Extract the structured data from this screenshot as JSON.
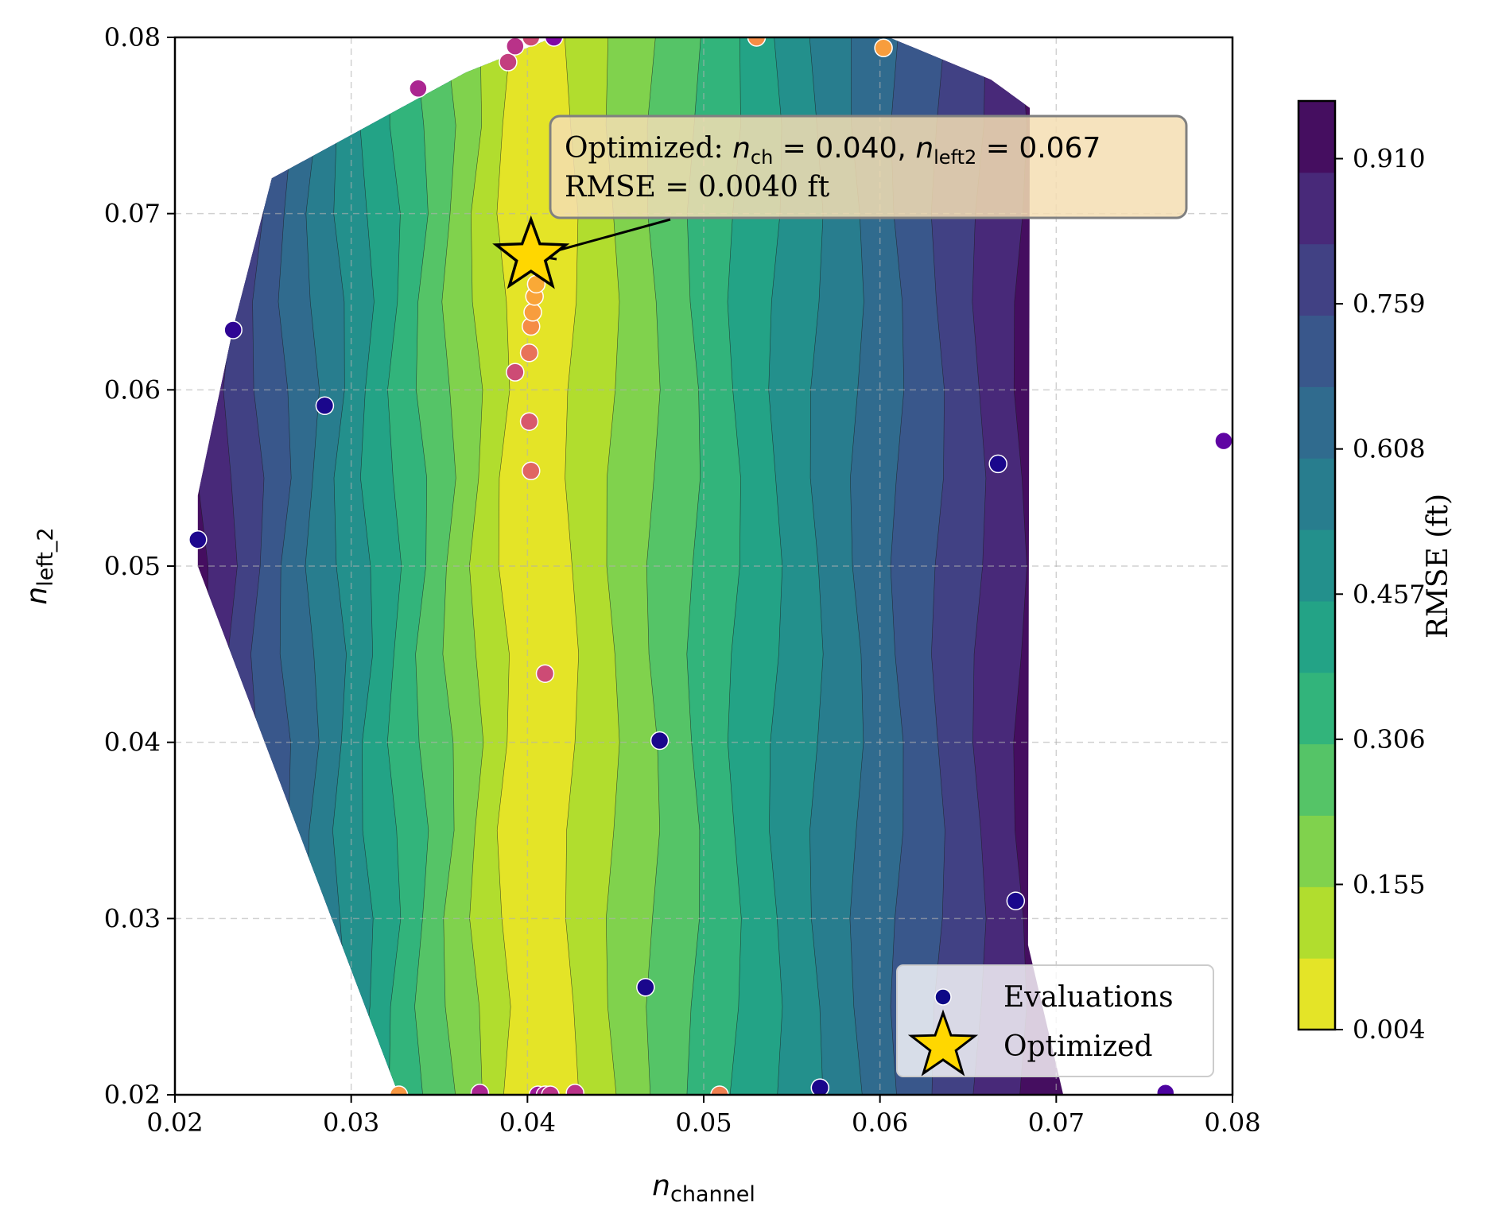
{
  "chart_data": {
    "type": "contour",
    "xlabel": "n_channel",
    "xlabel_base": "n",
    "xlabel_sub": "channel",
    "ylabel": "n_left_2",
    "ylabel_base": "n",
    "ylabel_sub": "left_2",
    "xlim": [
      0.02,
      0.08
    ],
    "ylim": [
      0.02,
      0.08
    ],
    "x_ticks": [
      "0.02",
      "0.03",
      "0.04",
      "0.05",
      "0.06",
      "0.07",
      "0.08"
    ],
    "y_ticks": [
      "0.02",
      "0.03",
      "0.04",
      "0.05",
      "0.06",
      "0.07",
      "0.08"
    ],
    "grid": true,
    "colorbar": {
      "label": "RMSE (ft)",
      "min": 0.004,
      "max": 0.97,
      "ticks": [
        "0.004",
        "0.155",
        "0.306",
        "0.457",
        "0.608",
        "0.759",
        "0.910"
      ],
      "levels": 13,
      "colormap": "viridis_r"
    },
    "contour_model": {
      "description": "RMSE rises with distance of n_channel from 0.040",
      "optimum_x": 0.0402
    },
    "hull": [
      [
        0.0327,
        0.02
      ],
      [
        0.0704,
        0.02
      ],
      [
        0.0684,
        0.0285
      ],
      [
        0.0685,
        0.076
      ],
      [
        0.0663,
        0.0776
      ],
      [
        0.0605,
        0.08
      ],
      [
        0.0415,
        0.08
      ],
      [
        0.0365,
        0.078
      ],
      [
        0.0255,
        0.072
      ],
      [
        0.0233,
        0.0635
      ],
      [
        0.0213,
        0.054
      ],
      [
        0.0213,
        0.05
      ]
    ],
    "evaluations": [
      {
        "x": 0.0213,
        "y": 0.0515,
        "rmse": 0.96
      },
      {
        "x": 0.0233,
        "y": 0.0634,
        "rmse": 0.92
      },
      {
        "x": 0.0285,
        "y": 0.0591,
        "rmse": 0.97
      },
      {
        "x": 0.0338,
        "y": 0.0771,
        "rmse": 0.55
      },
      {
        "x": 0.0327,
        "y": 0.02,
        "rmse": 0.12
      },
      {
        "x": 0.0373,
        "y": 0.0201,
        "rmse": 0.55
      },
      {
        "x": 0.0389,
        "y": 0.0786,
        "rmse": 0.45
      },
      {
        "x": 0.0393,
        "y": 0.0795,
        "rmse": 0.5
      },
      {
        "x": 0.0402,
        "y": 0.08,
        "rmse": 0.4
      },
      {
        "x": 0.0415,
        "y": 0.08,
        "rmse": 0.7
      },
      {
        "x": 0.0393,
        "y": 0.061,
        "rmse": 0.4
      },
      {
        "x": 0.0401,
        "y": 0.0621,
        "rmse": 0.25
      },
      {
        "x": 0.0402,
        "y": 0.0636,
        "rmse": 0.15
      },
      {
        "x": 0.0403,
        "y": 0.0644,
        "rmse": 0.1
      },
      {
        "x": 0.0404,
        "y": 0.0653,
        "rmse": 0.08
      },
      {
        "x": 0.0405,
        "y": 0.066,
        "rmse": 0.06
      },
      {
        "x": 0.0401,
        "y": 0.0582,
        "rmse": 0.35
      },
      {
        "x": 0.0402,
        "y": 0.0554,
        "rmse": 0.3
      },
      {
        "x": 0.041,
        "y": 0.0439,
        "rmse": 0.4
      },
      {
        "x": 0.0406,
        "y": 0.02,
        "rmse": 0.6
      },
      {
        "x": 0.041,
        "y": 0.02,
        "rmse": 0.55
      },
      {
        "x": 0.0413,
        "y": 0.02,
        "rmse": 0.5
      },
      {
        "x": 0.0427,
        "y": 0.0201,
        "rmse": 0.5
      },
      {
        "x": 0.0475,
        "y": 0.0401,
        "rmse": 0.97
      },
      {
        "x": 0.0467,
        "y": 0.0261,
        "rmse": 0.97
      },
      {
        "x": 0.0509,
        "y": 0.02,
        "rmse": 0.2
      },
      {
        "x": 0.053,
        "y": 0.08,
        "rmse": 0.15
      },
      {
        "x": 0.0566,
        "y": 0.0204,
        "rmse": 0.97
      },
      {
        "x": 0.0602,
        "y": 0.0794,
        "rmse": 0.1
      },
      {
        "x": 0.0667,
        "y": 0.0558,
        "rmse": 0.97
      },
      {
        "x": 0.0677,
        "y": 0.031,
        "rmse": 0.97
      },
      {
        "x": 0.0762,
        "y": 0.0201,
        "rmse": 0.85
      },
      {
        "x": 0.0795,
        "y": 0.0571,
        "rmse": 0.8
      }
    ],
    "optimized": {
      "x": 0.0402,
      "y": 0.0675
    },
    "annotation": {
      "line1_prefix": "Optimized: ",
      "n_sym": "n",
      "sub_ch": "ch",
      "eq_ch": " = 0.040, ",
      "sub_left2": "left2",
      "eq_left2": " = 0.067",
      "line2": "RMSE = 0.0040 ft"
    },
    "legend": {
      "position": "lower-right",
      "entries": [
        "Evaluations",
        "Optimized"
      ]
    }
  },
  "colors": {
    "star_fill": "#FFD700",
    "legend_point": "#0d0887",
    "annotation_box": "#F5DEB3"
  }
}
